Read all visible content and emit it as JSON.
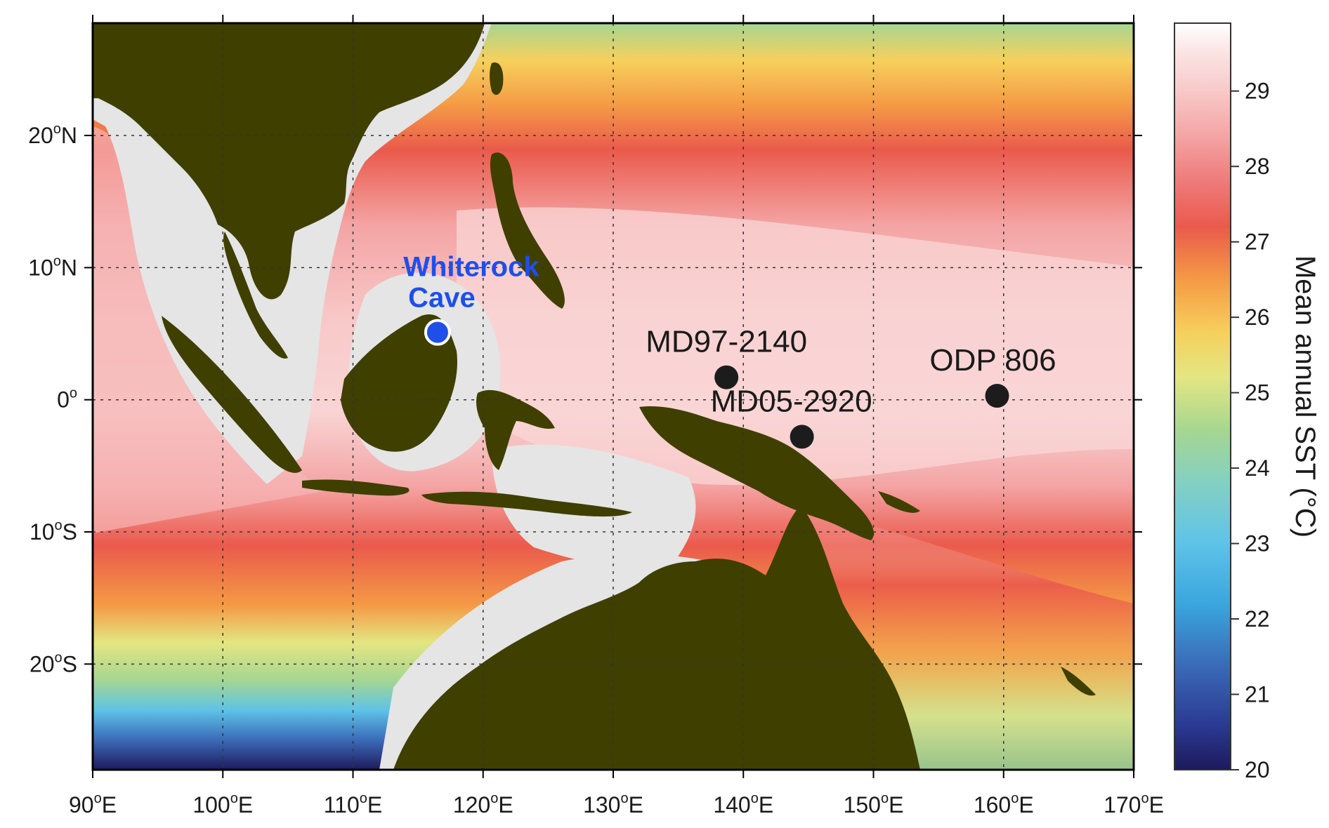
{
  "map": {
    "longitude_ticks": [
      {
        "value": "90",
        "sup": "o",
        "hemi": "E",
        "lon": 90
      },
      {
        "value": "100",
        "sup": "o",
        "hemi": "E",
        "lon": 100
      },
      {
        "value": "110",
        "sup": "o",
        "hemi": "E",
        "lon": 110
      },
      {
        "value": "120",
        "sup": "o",
        "hemi": "E",
        "lon": 120
      },
      {
        "value": "130",
        "sup": "o",
        "hemi": "E",
        "lon": 130
      },
      {
        "value": "140",
        "sup": "o",
        "hemi": "E",
        "lon": 140
      },
      {
        "value": "150",
        "sup": "o",
        "hemi": "E",
        "lon": 150
      },
      {
        "value": "160",
        "sup": "o",
        "hemi": "E",
        "lon": 160
      },
      {
        "value": "170",
        "sup": "o",
        "hemi": "E",
        "lon": 170
      }
    ],
    "latitude_ticks": [
      {
        "value": "20",
        "sup": "o",
        "hemi": "N",
        "lat": 20
      },
      {
        "value": "10",
        "sup": "o",
        "hemi": "N",
        "lat": 10
      },
      {
        "value": "0",
        "sup": "o",
        "hemi": "",
        "lat": 0
      },
      {
        "value": "10",
        "sup": "o",
        "hemi": "S",
        "lat": -10
      },
      {
        "value": "20",
        "sup": "o",
        "hemi": "S",
        "lat": -20
      }
    ],
    "extent": {
      "lon_min": 90,
      "lon_max": 170,
      "lat_min": -28,
      "lat_max": 28.5
    },
    "sites": [
      {
        "name": "Whiterock",
        "name_line2": "Cave",
        "lon": 116.5,
        "lat": 5.1,
        "type": "cave",
        "color": "#1f4fe8"
      },
      {
        "name": "MD97-2140",
        "lon": 138.7,
        "lat": 1.7,
        "type": "core",
        "color": "#1c1c1c"
      },
      {
        "name": "MD05-2920",
        "lon": 144.5,
        "lat": -2.8,
        "type": "core",
        "color": "#1c1c1c"
      },
      {
        "name": "ODP 806",
        "lon": 159.5,
        "lat": 0.3,
        "type": "core",
        "color": "#1c1c1c"
      }
    ],
    "land_color": "#3f3f00",
    "shelf_color": "#e5e5e5"
  },
  "colorbar": {
    "title": "Mean annual SST (°C)",
    "min": 20,
    "max": 29.9,
    "ticks": [
      "20",
      "21",
      "22",
      "23",
      "24",
      "25",
      "26",
      "27",
      "28",
      "29"
    ],
    "stops": [
      {
        "value": 20.0,
        "color": "#1d1a5c"
      },
      {
        "value": 20.6,
        "color": "#2b3a93"
      },
      {
        "value": 21.4,
        "color": "#3b6bb8"
      },
      {
        "value": 22.2,
        "color": "#3aa6de"
      },
      {
        "value": 23.0,
        "color": "#5ec3e8"
      },
      {
        "value": 23.8,
        "color": "#84d0c3"
      },
      {
        "value": 24.5,
        "color": "#a6d691"
      },
      {
        "value": 25.2,
        "color": "#e3e682"
      },
      {
        "value": 25.8,
        "color": "#f6d05c"
      },
      {
        "value": 26.5,
        "color": "#f59a45"
      },
      {
        "value": 27.2,
        "color": "#ea5a4c"
      },
      {
        "value": 27.8,
        "color": "#ef7a7a"
      },
      {
        "value": 28.4,
        "color": "#f4a4a4"
      },
      {
        "value": 29.0,
        "color": "#f8c9c9"
      },
      {
        "value": 29.5,
        "color": "#fbe3e3"
      },
      {
        "value": 29.9,
        "color": "#ffffff"
      }
    ]
  }
}
